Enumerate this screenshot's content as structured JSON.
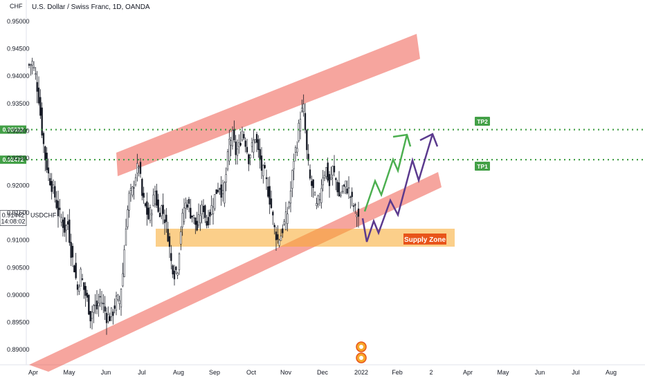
{
  "chart_data": {
    "type": "candlestick",
    "title": "U.S. Dollar / Swiss Franc, 1D, OANDA",
    "currency_label": "CHF",
    "symbol": "USDCHF",
    "last_price": "0.91442",
    "countdown": "14:08:02",
    "x_ticks": [
      "Apr",
      "May",
      "Jun",
      "Jul",
      "Aug",
      "Sep",
      "Oct",
      "Nov",
      "Dec",
      "2022",
      "Feb",
      "2",
      "Apr",
      "May",
      "Jun",
      "Jul",
      "Aug"
    ],
    "y_ticks": [
      "0.95000",
      "0.94500",
      "0.94000",
      "0.93500",
      "0.93000",
      "0.92500",
      "0.92000",
      "0.91500",
      "0.91000",
      "0.90500",
      "0.90000",
      "0.89500",
      "0.89000"
    ],
    "ylim": [
      0.8875,
      0.9525
    ],
    "close_path": [
      [
        0,
        0.942
      ],
      [
        2,
        0.9425
      ],
      [
        4,
        0.94
      ],
      [
        6,
        0.936
      ],
      [
        8,
        0.93
      ],
      [
        10,
        0.925
      ],
      [
        12,
        0.922
      ],
      [
        14,
        0.92
      ],
      [
        16,
        0.918
      ],
      [
        18,
        0.915
      ],
      [
        20,
        0.914
      ],
      [
        22,
        0.912
      ],
      [
        24,
        0.913
      ],
      [
        26,
        0.908
      ],
      [
        28,
        0.905
      ],
      [
        30,
        0.901
      ],
      [
        32,
        0.904
      ],
      [
        34,
        0.901
      ],
      [
        36,
        0.899
      ],
      [
        38,
        0.896
      ],
      [
        40,
        0.898
      ],
      [
        42,
        0.8975
      ],
      [
        44,
        0.8995
      ],
      [
        46,
        0.898
      ],
      [
        48,
        0.896
      ],
      [
        50,
        0.896
      ],
      [
        52,
        0.897
      ],
      [
        54,
        0.899
      ],
      [
        56,
        0.899
      ],
      [
        58,
        0.904
      ],
      [
        60,
        0.913
      ],
      [
        62,
        0.918
      ],
      [
        64,
        0.919
      ],
      [
        66,
        0.922
      ],
      [
        68,
        0.924
      ],
      [
        70,
        0.918
      ],
      [
        72,
        0.916
      ],
      [
        74,
        0.914
      ],
      [
        76,
        0.916
      ],
      [
        78,
        0.919
      ],
      [
        80,
        0.915
      ],
      [
        82,
        0.916
      ],
      [
        84,
        0.914
      ],
      [
        86,
        0.911
      ],
      [
        88,
        0.906
      ],
      [
        90,
        0.904
      ],
      [
        92,
        0.905
      ],
      [
        94,
        0.912
      ],
      [
        96,
        0.916
      ],
      [
        98,
        0.917
      ],
      [
        100,
        0.915
      ],
      [
        102,
        0.914
      ],
      [
        104,
        0.912
      ],
      [
        106,
        0.915
      ],
      [
        108,
        0.916
      ],
      [
        110,
        0.913
      ],
      [
        112,
        0.915
      ],
      [
        114,
        0.917
      ],
      [
        116,
        0.919
      ],
      [
        118,
        0.92
      ],
      [
        120,
        0.918
      ],
      [
        122,
        0.922
      ],
      [
        124,
        0.928
      ],
      [
        126,
        0.929
      ],
      [
        128,
        0.926
      ],
      [
        130,
        0.927
      ],
      [
        132,
        0.93
      ],
      [
        134,
        0.928
      ],
      [
        136,
        0.925
      ],
      [
        138,
        0.927
      ],
      [
        140,
        0.929
      ],
      [
        142,
        0.926
      ],
      [
        144,
        0.923
      ],
      [
        146,
        0.922
      ],
      [
        148,
        0.919
      ],
      [
        150,
        0.916
      ],
      [
        152,
        0.912
      ],
      [
        154,
        0.91
      ],
      [
        156,
        0.911
      ],
      [
        158,
        0.913
      ],
      [
        160,
        0.915
      ],
      [
        162,
        0.919
      ],
      [
        164,
        0.925
      ],
      [
        166,
        0.928
      ],
      [
        168,
        0.933
      ],
      [
        170,
        0.934
      ],
      [
        172,
        0.926
      ],
      [
        174,
        0.921
      ],
      [
        176,
        0.919
      ],
      [
        178,
        0.916
      ],
      [
        180,
        0.918
      ],
      [
        182,
        0.922
      ],
      [
        184,
        0.923
      ],
      [
        186,
        0.92
      ],
      [
        188,
        0.923
      ],
      [
        190,
        0.921
      ],
      [
        192,
        0.918
      ],
      [
        194,
        0.919
      ],
      [
        196,
        0.92
      ],
      [
        198,
        0.919
      ],
      [
        200,
        0.917
      ],
      [
        202,
        0.9155
      ],
      [
        204,
        0.9144
      ]
    ],
    "levels": [
      {
        "label": "TP2",
        "price_tag": "0.93022",
        "value": 0.93022,
        "color": "#43a047"
      },
      {
        "label": "TP1",
        "price_tag": "0.92472",
        "value": 0.92472,
        "color": "#43a047"
      }
    ],
    "zones": [
      {
        "name": "Supply Zone",
        "color": "#f7a829"
      }
    ],
    "channel_color": "#ee4b3d",
    "arrow_colors": {
      "bullish": "#4caf50",
      "alternate": "#5b3a8e"
    },
    "up_color": "#131722",
    "down_color": "#131722"
  }
}
